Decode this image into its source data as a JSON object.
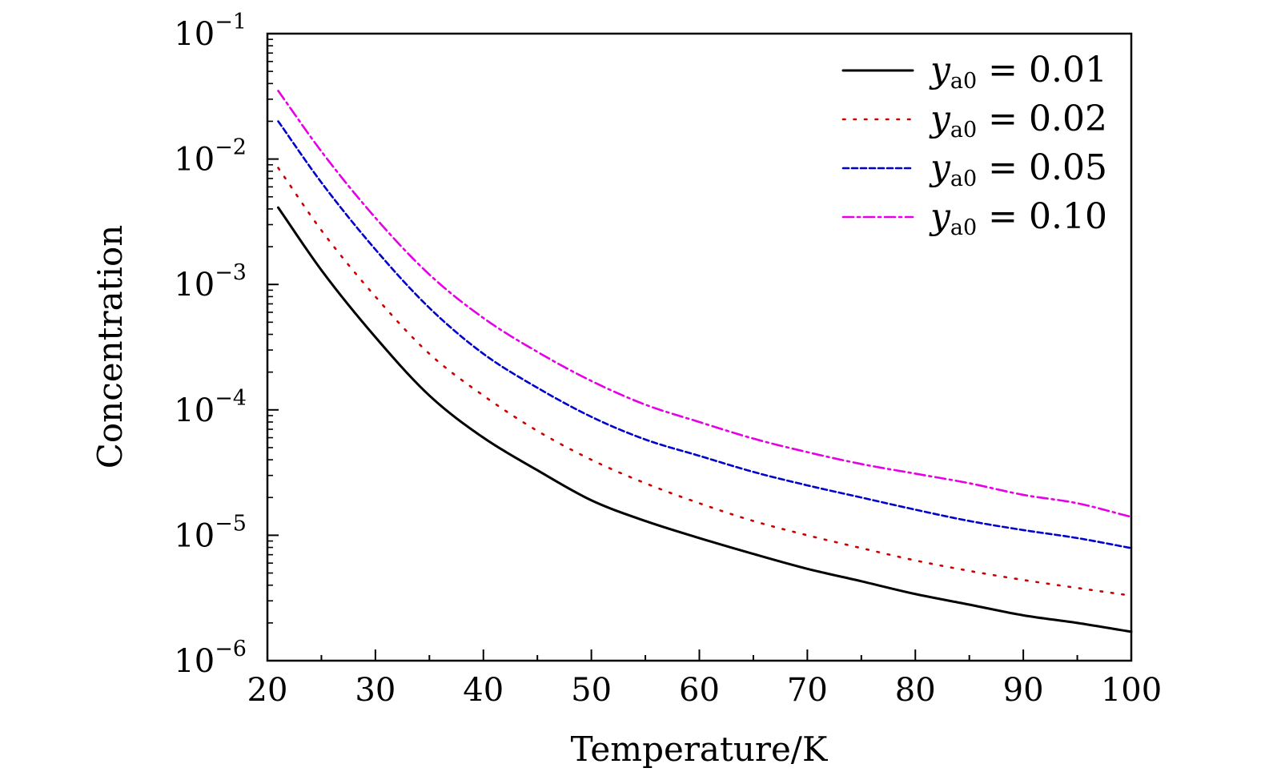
{
  "chart_data": {
    "type": "line",
    "title": "",
    "xlabel": "Temperature/K",
    "ylabel": "Concentration",
    "xlim": [
      20,
      100
    ],
    "ylim": [
      1e-06,
      0.1
    ],
    "y_scale": "log",
    "x_ticks": [
      "20",
      "30",
      "40",
      "50",
      "60",
      "70",
      "80",
      "90",
      "100"
    ],
    "y_ticks": [
      {
        "base": "10",
        "exp": "−6",
        "value": 1e-06
      },
      {
        "base": "10",
        "exp": "−5",
        "value": 1e-05
      },
      {
        "base": "10",
        "exp": "−4",
        "value": 0.0001
      },
      {
        "base": "10",
        "exp": "−3",
        "value": 0.001
      },
      {
        "base": "10",
        "exp": "−2",
        "value": 0.01
      },
      {
        "base": "10",
        "exp": "−1",
        "value": 0.1
      }
    ],
    "grid": false,
    "legend_position": "top-right",
    "x": [
      21,
      25,
      30,
      35,
      40,
      45,
      50,
      55,
      60,
      65,
      70,
      75,
      80,
      85,
      90,
      95,
      100
    ],
    "series": [
      {
        "name": "y_a0 = 0.01",
        "legend_var": "y",
        "legend_sub": "a0",
        "legend_eq": "= 0.01",
        "color": "#000000",
        "dash": "solid",
        "values": [
          0.0041,
          0.0013,
          0.00038,
          0.00013,
          6e-05,
          3.3e-05,
          1.9e-05,
          1.3e-05,
          9.5e-06,
          7.1e-06,
          5.4e-06,
          4.3e-06,
          3.4e-06,
          2.8e-06,
          2.3e-06,
          2e-06,
          1.7e-06
        ]
      },
      {
        "name": "y_a0 = 0.02",
        "legend_var": "y",
        "legend_sub": "a0",
        "legend_eq": "= 0.02",
        "color": "#cc0000",
        "dash": "dotted",
        "values": [
          0.0085,
          0.0027,
          0.0008,
          0.00028,
          0.00013,
          6.8e-05,
          4e-05,
          2.6e-05,
          1.8e-05,
          1.3e-05,
          1e-05,
          7.9e-06,
          6.3e-06,
          5.2e-06,
          4.4e-06,
          3.8e-06,
          3.3e-06
        ]
      },
      {
        "name": "y_a0 = 0.05",
        "legend_var": "y",
        "legend_sub": "a0",
        "legend_eq": "= 0.05",
        "color": "#0000cc",
        "dash": "dashed",
        "values": [
          0.02,
          0.0065,
          0.0019,
          0.00065,
          0.00028,
          0.00015,
          8.8e-05,
          5.8e-05,
          4.3e-05,
          3.2e-05,
          2.5e-05,
          2e-05,
          1.6e-05,
          1.3e-05,
          1.1e-05,
          9.5e-06,
          7.9e-06
        ]
      },
      {
        "name": "y_a0 = 0.10",
        "legend_var": "y",
        "legend_sub": "a0",
        "legend_eq": "= 0.10",
        "color": "#e600e6",
        "dash": "dashdot",
        "values": [
          0.035,
          0.0115,
          0.0034,
          0.0012,
          0.00054,
          0.00029,
          0.00017,
          0.00011,
          8e-05,
          5.9e-05,
          4.6e-05,
          3.7e-05,
          3.1e-05,
          2.6e-05,
          2.1e-05,
          1.8e-05,
          1.4e-05
        ]
      }
    ]
  }
}
